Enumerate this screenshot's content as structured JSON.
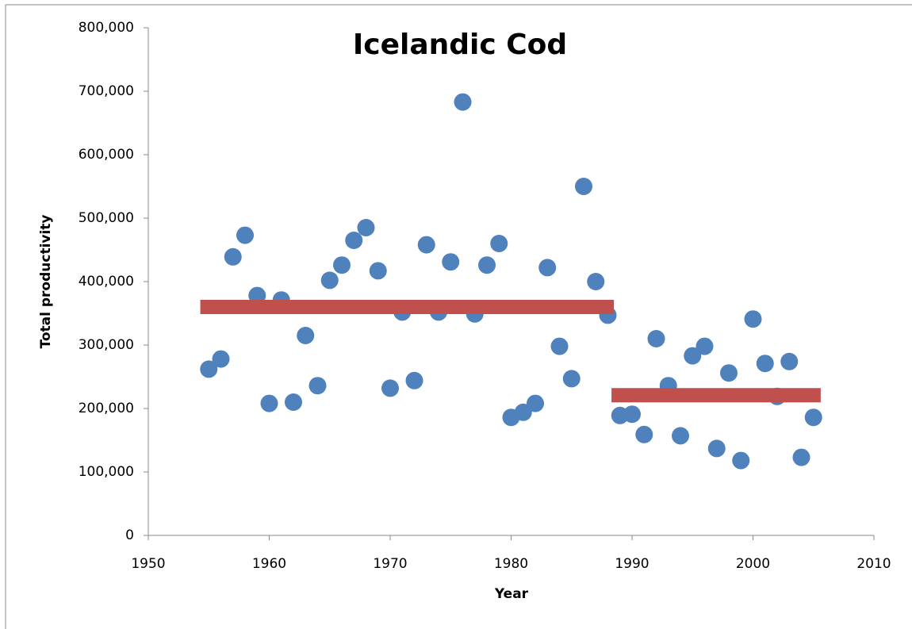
{
  "chart_data": {
    "type": "scatter",
    "title": "Icelandic Cod",
    "x_label": "Year",
    "y_label": "Total productivity",
    "xlim": [
      1950,
      2010
    ],
    "xticks": [
      1950,
      1960,
      1970,
      1980,
      1990,
      2000,
      2010
    ],
    "ylim": [
      0,
      800000
    ],
    "yticks": [
      0,
      {
        "value": 100000,
        "label": "100,000"
      },
      {
        "value": 200000,
        "label": "200,000"
      },
      {
        "value": 300000,
        "label": "300,000"
      },
      {
        "value": 400000,
        "label": "400,000"
      },
      {
        "value": 500000,
        "label": "500,000"
      },
      {
        "value": 600000,
        "label": "600,000"
      },
      {
        "value": 700000,
        "label": "700,000"
      },
      {
        "value": 800000,
        "label": "800,000"
      }
    ],
    "grid": false,
    "series": [
      {
        "mark": "marker",
        "color": "#4f81bd",
        "x": [
          1955,
          1956,
          1957,
          1958,
          1959,
          1960,
          1961,
          1962,
          1963,
          1964,
          1965,
          1966,
          1967,
          1968,
          1969,
          1970,
          1971,
          1972,
          1973,
          1974,
          1975,
          1976,
          1977,
          1978,
          1979,
          1980,
          1981,
          1982,
          1983,
          1984,
          1985,
          1986,
          1987,
          1988,
          1989,
          1990,
          1991,
          1992,
          1993,
          1994,
          1995,
          1996,
          1997,
          1998,
          1999,
          2000,
          2001,
          2002,
          2003,
          2004,
          2005
        ],
        "values": [
          262000,
          278000,
          439000,
          473000,
          378000,
          208000,
          371000,
          210000,
          315000,
          236000,
          402000,
          426000,
          465000,
          485000,
          417000,
          232000,
          352000,
          244000,
          458000,
          352000,
          431000,
          683000,
          349000,
          426000,
          460000,
          186000,
          194000,
          208000,
          422000,
          298000,
          247000,
          550000,
          400000,
          347000,
          189000,
          191000,
          159000,
          310000,
          236000,
          157000,
          283000,
          298000,
          137000,
          256000,
          118000,
          341000,
          271000,
          219000,
          274000,
          123000,
          186000
        ]
      },
      {
        "mark": "line",
        "color": "#c0504d",
        "x": [
          1954.3,
          1988.5
        ],
        "values": [
          360000,
          360000
        ]
      },
      {
        "mark": "line",
        "color": "#c0504d",
        "x": [
          1988.3,
          2005.6
        ],
        "values": [
          221000,
          221000
        ]
      }
    ]
  }
}
